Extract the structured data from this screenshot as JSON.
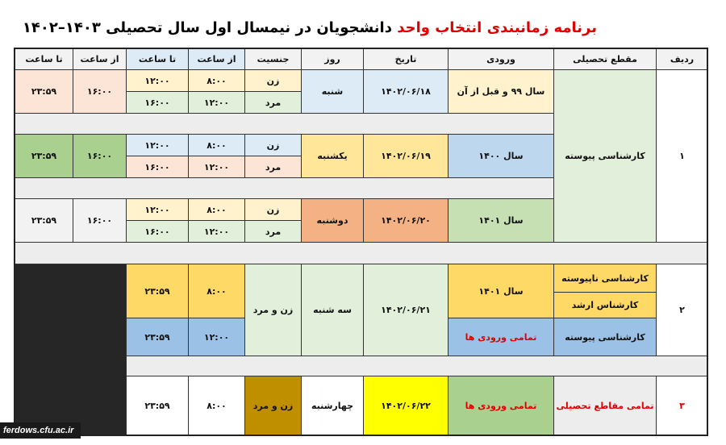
{
  "title": {
    "red": "برنامه زمانبندی  انتخاب واحد",
    "black": " دانشجویان در  نیمسال اول سال تحصیلی ۱۴۰۳–۱۴۰۲"
  },
  "header": [
    "تا ساعت",
    "از ساعت",
    "تا ساعت",
    "از ساعت",
    "جنسیت",
    "روز",
    "تاریخ",
    "ورودی",
    "مقطع تحصیلی",
    "ردیف"
  ],
  "group1": {
    "row_no": "۱",
    "level": "کارشناسی پیوسته",
    "rows": [
      {
        "entry": "سال ۹۹ و قبل از آن",
        "date": "۱۴۰۲/۰۶/۱۸",
        "day": "شنبه",
        "female": "زن",
        "male": "مرد",
        "f_from": "۸:۰۰",
        "f_to": "۱۲:۰۰",
        "m_from": "۱۲:۰۰",
        "m_to": "۱۶:۰۰",
        "from": "۱۶:۰۰",
        "to": "۲۳:۵۹"
      },
      {
        "entry": "سال ۱۴۰۰",
        "date": "۱۴۰۲/۰۶/۱۹",
        "day": "یکشنبه",
        "female": "زن",
        "male": "مرد",
        "f_from": "۸:۰۰",
        "f_to": "۱۲:۰۰",
        "m_from": "۱۲:۰۰",
        "m_to": "۱۶:۰۰",
        "from": "۱۶:۰۰",
        "to": "۲۳:۵۹"
      },
      {
        "entry": "سال ۱۴۰۱",
        "date": "۱۴۰۲/۰۶/۲۰",
        "day": "دوشنبه",
        "female": "زن",
        "male": "مرد",
        "f_from": "۸:۰۰",
        "f_to": "۱۲:۰۰",
        "m_from": "۱۲:۰۰",
        "m_to": "۱۶:۰۰",
        "from": "۱۶:۰۰",
        "to": "۲۳:۵۹"
      }
    ]
  },
  "group2": {
    "row_no": "۲",
    "levels": [
      "کارشناسی ناپیوسته",
      "کارشناس ارشد",
      "کارشناسی پیوسته"
    ],
    "entries": [
      "سال ۱۴۰۱",
      "تمامی ورودی ها"
    ],
    "date": "۱۴۰۲/۰۶/۲۱",
    "day": "سه شنبه",
    "gender": "زن و مرد",
    "upper": {
      "from": "۸:۰۰",
      "to": "۲۳:۵۹"
    },
    "lower": {
      "from": "۱۲:۰۰",
      "to": "۲۳:۵۹"
    }
  },
  "group3": {
    "row_no": "۳",
    "level": "تمامی مقاطع تحصیلی",
    "entry": "تمامی ورودی ها",
    "date": "۱۴۰۲/۰۶/۲۲",
    "day": "چهارشنبه",
    "gender": "زن و مرد",
    "from": "۸:۰۰",
    "to": "۲۳:۵۹"
  },
  "watermark": "ferdows.cfu.ac.ir",
  "colors": {
    "accent_red": "#e00000",
    "separator": "#ededed",
    "dark_block": "#262626"
  }
}
